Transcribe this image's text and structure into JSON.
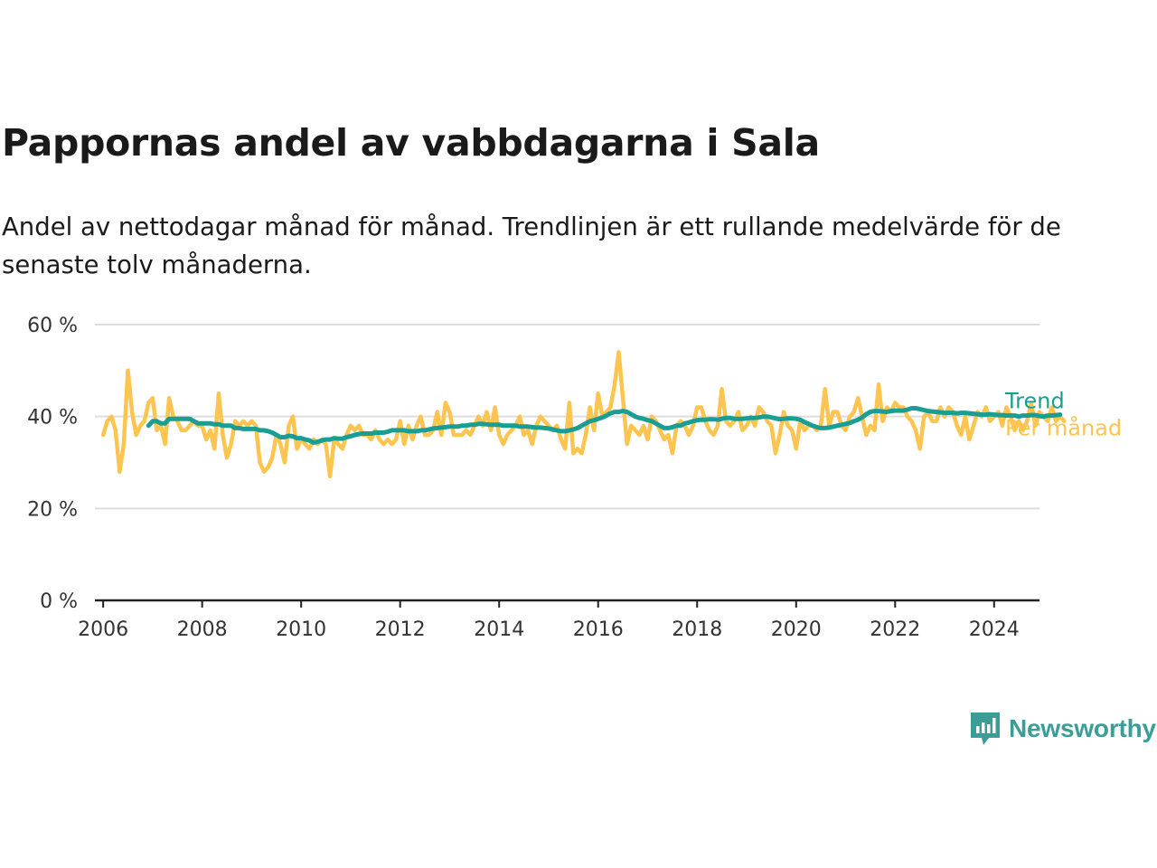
{
  "title": "Pappornas andel av vabbdagarna i Sala",
  "subtitle": "Andel av nettodagar månad för månad. Trendlinjen är ett rullande medelvärde för de senaste tolv månaderna.",
  "brand": {
    "name": "Newsworthy",
    "icon": "newsworthy-logo-icon"
  },
  "colors": {
    "trend": "#1a9e93",
    "monthly": "#fdc54f",
    "grid": "#dddddd",
    "axis": "#222222"
  },
  "chart_data": {
    "type": "line",
    "title": "Pappornas andel av vabbdagarna i Sala",
    "x_range": [
      "2005-11",
      "2024-12"
    ],
    "ylim": [
      0,
      60
    ],
    "y_ticks": [
      {
        "value": 0,
        "label": "0 %"
      },
      {
        "value": 20,
        "label": "20 %"
      },
      {
        "value": 40,
        "label": "40 %"
      },
      {
        "value": 60,
        "label": "60 %"
      }
    ],
    "x_ticks": [
      "2006",
      "2008",
      "2010",
      "2012",
      "2014",
      "2016",
      "2018",
      "2020",
      "2022",
      "2024"
    ],
    "grid": true,
    "legend": "direct labels at right end of lines",
    "series": [
      {
        "name": "Per månad",
        "start": "2006-01",
        "values": [
          36,
          39,
          40,
          37,
          28,
          34,
          50,
          41,
          36,
          38,
          39,
          43,
          44,
          37,
          38,
          34,
          44,
          40,
          39,
          37,
          37,
          38,
          39,
          38,
          38,
          35,
          37,
          33,
          45,
          36,
          31,
          34,
          39,
          38,
          39,
          38,
          39,
          38,
          30,
          28,
          29,
          31,
          36,
          34,
          30,
          38,
          40,
          33,
          35,
          34,
          33,
          35,
          34,
          35,
          34,
          27,
          35,
          34,
          33,
          36,
          38,
          37,
          38,
          36,
          36,
          35,
          37,
          35,
          34,
          35,
          34,
          35,
          39,
          34,
          38,
          35,
          38,
          40,
          36,
          36,
          37,
          41,
          36,
          43,
          41,
          36,
          36,
          36,
          37,
          36,
          38,
          40,
          38,
          41,
          37,
          42,
          36,
          34,
          36,
          37,
          38,
          40,
          36,
          37,
          34,
          38,
          40,
          39,
          38,
          37,
          38,
          35,
          33,
          43,
          32,
          33,
          32,
          36,
          42,
          37,
          45,
          40,
          41,
          42,
          47,
          54,
          44,
          34,
          38,
          37,
          36,
          38,
          35,
          40,
          39,
          37,
          35,
          36,
          32,
          38,
          39,
          38,
          36,
          38,
          42,
          42,
          39,
          37,
          36,
          38,
          46,
          39,
          38,
          39,
          41,
          37,
          38,
          40,
          38,
          42,
          41,
          39,
          38,
          32,
          36,
          41,
          38,
          37,
          33,
          39,
          37,
          38,
          38,
          37,
          38,
          46,
          38,
          41,
          41,
          38,
          37,
          40,
          41,
          44,
          40,
          36,
          38,
          37,
          47,
          39,
          42,
          41,
          43,
          42,
          42,
          40,
          39,
          37,
          33,
          40,
          41,
          39,
          39,
          42,
          40,
          42,
          41,
          38,
          36,
          40,
          35,
          38,
          41,
          40,
          42,
          39,
          40,
          41,
          38,
          42,
          40,
          37,
          39,
          37,
          39,
          43,
          38,
          41,
          40,
          39,
          42,
          39,
          40,
          39
        ]
      },
      {
        "name": "Trend",
        "start": "2006-12",
        "values": [
          38,
          39,
          39,
          38.5,
          38.5,
          39.5,
          39.5,
          39.5,
          39.5,
          39.5,
          39.5,
          39,
          38.5,
          38.5,
          38.5,
          38.5,
          38.3,
          38.3,
          38,
          38,
          38,
          37.5,
          37.5,
          37.3,
          37.3,
          37.3,
          37.3,
          37,
          37,
          36.8,
          36.5,
          36,
          35.5,
          35.5,
          35.8,
          35.7,
          35.3,
          35.3,
          35,
          34.8,
          34.3,
          34.5,
          34.8,
          35,
          35,
          35.3,
          35.2,
          35.2,
          35.5,
          35.7,
          36,
          36.2,
          36.3,
          36.3,
          36.3,
          36.5,
          36.5,
          36.5,
          36.7,
          37,
          37,
          37,
          37,
          36.8,
          36.8,
          36.8,
          37,
          37,
          37.2,
          37.4,
          37.5,
          37.6,
          37.7,
          37.8,
          37.8,
          37.8,
          38,
          38,
          38.2,
          38.2,
          38.4,
          38.4,
          38.3,
          38.2,
          38.2,
          38.2,
          38,
          38,
          38,
          38,
          37.8,
          37.8,
          37.8,
          37.7,
          37.6,
          37.6,
          37.5,
          37.4,
          37.2,
          37,
          36.8,
          36.8,
          37,
          37.2,
          37.5,
          38,
          38.5,
          39,
          39.2,
          39.5,
          39.8,
          40.2,
          40.7,
          41,
          41,
          41.2,
          41,
          40.5,
          40,
          39.7,
          39.5,
          39.2,
          39,
          38.5,
          38,
          37.5,
          37.5,
          37.7,
          38,
          38,
          38.5,
          38.7,
          39,
          39.2,
          39.3,
          39.3,
          39.4,
          39.4,
          39.3,
          39.5,
          39.7,
          39.7,
          39.5,
          39.5,
          39.5,
          39.6,
          39.7,
          39.7,
          39.8,
          40,
          40,
          39.8,
          39.6,
          39.4,
          39.5,
          39.6,
          39.6,
          39.5,
          39.3,
          38.8,
          38.4,
          38,
          37.7,
          37.5,
          37.5,
          37.6,
          37.8,
          38,
          38.2,
          38.4,
          38.6,
          39,
          39.3,
          39.8,
          40.5,
          41,
          41.2,
          41.2,
          41.1,
          41,
          41.2,
          41.3,
          41.3,
          41.3,
          41.5,
          41.8,
          41.8,
          41.6,
          41.4,
          41.2,
          41.1,
          41,
          40.9,
          40.8,
          40.8,
          40.8,
          40.7,
          40.8,
          40.8,
          40.7,
          40.6,
          40.5,
          40.4,
          40.4,
          40.5,
          40.4,
          40.3,
          40.3,
          40.2,
          40.2,
          40.2,
          40,
          40.2,
          40.2,
          40.3,
          40.3,
          40.1,
          40,
          40.2,
          40.2,
          40.3,
          40.4
        ]
      }
    ]
  }
}
